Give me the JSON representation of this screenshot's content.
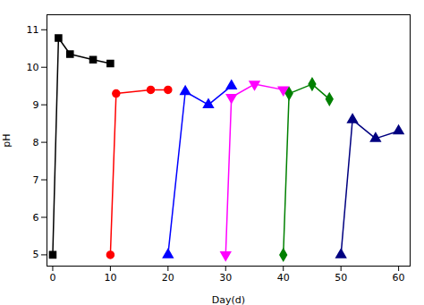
{
  "chart_data": {
    "type": "line",
    "xlabel": "Day(d)",
    "ylabel": "pH",
    "xlim": [
      -1,
      62
    ],
    "ylim": [
      4.7,
      11.4
    ],
    "xticks": [
      0,
      10,
      20,
      30,
      40,
      50,
      60
    ],
    "yticks": [
      5,
      6,
      7,
      8,
      9,
      10,
      11
    ],
    "grid": false,
    "series": [
      {
        "color": "#000000",
        "marker": "square",
        "x": [
          0,
          1,
          3,
          7,
          10
        ],
        "values": [
          5.0,
          10.78,
          10.35,
          10.2,
          10.1
        ]
      },
      {
        "color": "#ff0000",
        "marker": "circle",
        "x": [
          10,
          11,
          17,
          20
        ],
        "values": [
          5.0,
          9.3,
          9.4,
          9.4
        ]
      },
      {
        "color": "#0000ff",
        "marker": "triangle-up",
        "x": [
          20,
          23,
          27,
          31
        ],
        "values": [
          5.0,
          9.35,
          9.0,
          9.5
        ]
      },
      {
        "color": "#ff00ff",
        "marker": "triangle-down",
        "x": [
          30,
          31,
          35,
          40
        ],
        "values": [
          5.0,
          9.2,
          9.55,
          9.4
        ]
      },
      {
        "color": "#008000",
        "marker": "diamond",
        "x": [
          40,
          41,
          45,
          48
        ],
        "values": [
          5.0,
          9.3,
          9.55,
          9.15
        ]
      },
      {
        "color": "#000080",
        "marker": "triangle-up",
        "x": [
          50,
          52,
          56,
          60
        ],
        "values": [
          5.0,
          8.6,
          8.1,
          8.3
        ]
      }
    ]
  }
}
